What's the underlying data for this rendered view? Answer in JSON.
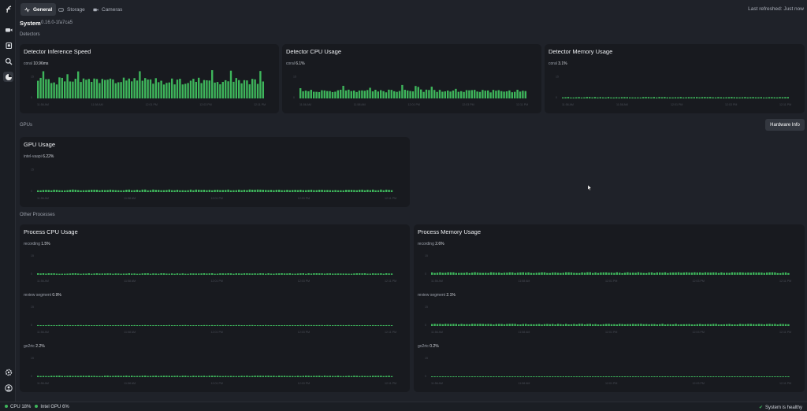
{
  "app": {
    "tabs": [
      {
        "label": "General",
        "icon": "activity-icon"
      },
      {
        "label": "Storage",
        "icon": "hard-drive-icon"
      },
      {
        "label": "Cameras",
        "icon": "video-icon"
      }
    ],
    "last_refreshed": "Last refreshed: Just now",
    "system_title": "System",
    "version": "0.16.0-1fa7ca5"
  },
  "sidebar": {
    "icons": [
      "frigate-logo-icon",
      "video-icon",
      "library-icon",
      "search-icon",
      "chart-icon",
      "settings-icon",
      "account-icon"
    ]
  },
  "sections": {
    "detectors": "Detectors",
    "gpus": "GPUs",
    "other": "Other Processes"
  },
  "hardware_info_button": "Hardware Info",
  "status": {
    "cpu": "CPU 18%",
    "gpu": "Intel GPU 6%",
    "healthy": "System is healthy"
  },
  "colors": {
    "accent": "#3eb55b",
    "card": "#181a1f",
    "bg": "#1f2229"
  },
  "time_ticks": [
    "11:56 AM",
    "11:58 AM",
    "12:01 PM",
    "12:03 PM",
    "12:11 PM"
  ],
  "chart_data": [
    {
      "id": "det-speed",
      "title": "Detector Inference Speed",
      "type": "bar",
      "series": [
        {
          "name": "coral",
          "current": "10.96ms",
          "level": 0.58,
          "spike": 0.93
        }
      ]
    },
    {
      "id": "det-cpu",
      "title": "Detector CPU Usage",
      "type": "bar",
      "series": [
        {
          "name": "coral",
          "current": "6.1%",
          "level": 0.25,
          "spike": 0.45
        }
      ]
    },
    {
      "id": "det-mem",
      "title": "Detector Memory Usage",
      "type": "bar",
      "series": [
        {
          "name": "coral",
          "current": "3.1%",
          "level": 0.04,
          "spike": 0.04
        }
      ]
    },
    {
      "id": "gpu",
      "title": "GPU Usage",
      "type": "bar",
      "series": [
        {
          "name": "intel-vaapi",
          "current": "6.22%",
          "level": 0.07,
          "spike": 0.07
        }
      ]
    },
    {
      "id": "proc-cpu",
      "title": "Process CPU Usage",
      "type": "bar",
      "series": [
        {
          "name": "recording",
          "current": "1.5%",
          "level": 0.05,
          "spike": 0.05
        },
        {
          "name": "review_segment",
          "current": "0.9%",
          "level": 0.03,
          "spike": 0.03
        },
        {
          "name": "go2rtc",
          "current": "2.2%",
          "level": 0.05,
          "spike": 0.05
        }
      ]
    },
    {
      "id": "proc-mem",
      "title": "Process Memory Usage",
      "type": "bar",
      "series": [
        {
          "name": "recording",
          "current": "2.6%",
          "level": 0.08,
          "spike": 0.08
        },
        {
          "name": "review_segment",
          "current": "2.1%",
          "level": 0.07,
          "spike": 0.07
        },
        {
          "name": "go2rtc",
          "current": "0.2%",
          "level": 0.01,
          "spike": 0.01
        }
      ]
    }
  ]
}
